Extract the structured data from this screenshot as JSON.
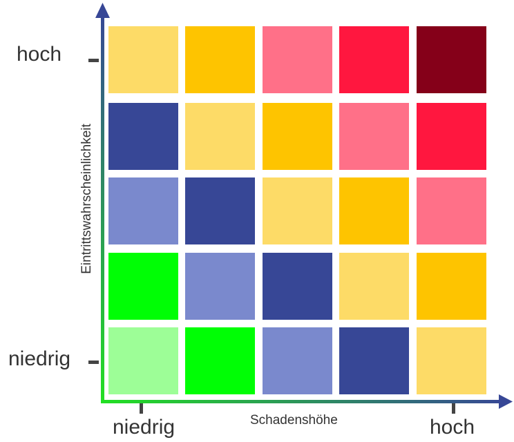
{
  "y_axis": {
    "title": "Eintrittswahrscheinlichkeit",
    "high_label": "hoch",
    "low_label": "niedrig"
  },
  "x_axis": {
    "title": "Schadenshöhe",
    "low_label": "niedrig",
    "high_label": "hoch"
  },
  "colors": {
    "light_green": "#9dfe97",
    "green": "#00fe05",
    "light_blue": "#7a89cd",
    "dark_blue": "#374796",
    "light_yellow": "#fddb67",
    "yellow": "#fec400",
    "pink": "#ff7088",
    "red": "#ff173f",
    "dark_red": "#850019",
    "axis_top": "#374796",
    "axis_bottom": "#22e022"
  },
  "grid": {
    "rows_top_to_bottom": [
      [
        "light_yellow",
        "yellow",
        "pink",
        "red",
        "dark_red"
      ],
      [
        "dark_blue",
        "light_yellow",
        "yellow",
        "pink",
        "red"
      ],
      [
        "light_blue",
        "dark_blue",
        "light_yellow",
        "yellow",
        "pink"
      ],
      [
        "green",
        "light_blue",
        "dark_blue",
        "light_yellow",
        "yellow"
      ],
      [
        "light_green",
        "green",
        "light_blue",
        "dark_blue",
        "light_yellow"
      ]
    ]
  }
}
